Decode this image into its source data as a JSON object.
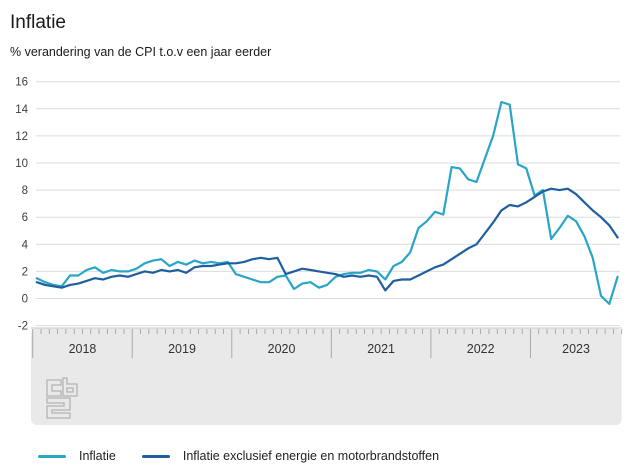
{
  "page": {
    "title": "Inflatie",
    "subtitle": "% verandering van de CPI t.o.v een jaar eerder"
  },
  "chart_data": {
    "type": "line",
    "title": "Inflatie",
    "subtitle": "% verandering van de CPI t.o.v een jaar eerder",
    "x_start": "2018-01",
    "x_end": "2023-11",
    "frequency": "monthly",
    "year_labels": [
      "2018",
      "2019",
      "2020",
      "2021",
      "2022",
      "2023"
    ],
    "y_ticks": [
      -2,
      0,
      2,
      4,
      6,
      8,
      10,
      12,
      14,
      16
    ],
    "ylim": [
      -2,
      16
    ],
    "grid": "horizontal",
    "legend_position": "bottom",
    "colors": {
      "grid": "#dcdcdc",
      "axis_band": "#e9e9e9",
      "axis_band_edge": "#c9c9c9",
      "tick": "#9a9a9a",
      "year_divider": "#a8a8a8",
      "tick_label": "#333333",
      "y_label": "#404040",
      "logo": "#b3b3b3"
    },
    "series": [
      {
        "name": "Inflatie",
        "color": "#29a5c8",
        "values": [
          1.5,
          1.2,
          1.0,
          0.9,
          1.7,
          1.7,
          2.1,
          2.3,
          1.9,
          2.1,
          2.0,
          2.0,
          2.2,
          2.6,
          2.8,
          2.9,
          2.4,
          2.7,
          2.5,
          2.8,
          2.6,
          2.7,
          2.6,
          2.7,
          1.8,
          1.6,
          1.4,
          1.2,
          1.2,
          1.6,
          1.7,
          0.7,
          1.1,
          1.2,
          0.8,
          1.0,
          1.6,
          1.8,
          1.9,
          1.9,
          2.1,
          2.0,
          1.4,
          2.4,
          2.7,
          3.4,
          5.2,
          5.7,
          6.4,
          6.2,
          9.7,
          9.6,
          8.8,
          8.6,
          10.3,
          12.0,
          14.5,
          14.3,
          9.9,
          9.6,
          7.6,
          8.0,
          4.4,
          5.2,
          6.1,
          5.7,
          4.6,
          3.0,
          0.2,
          -0.4,
          1.6
        ]
      },
      {
        "name": "Inflatie exclusief energie en motorbrandstoffen",
        "color": "#1f5fa0",
        "values": [
          1.2,
          1.0,
          0.9,
          0.8,
          1.0,
          1.1,
          1.3,
          1.5,
          1.4,
          1.6,
          1.7,
          1.6,
          1.8,
          2.0,
          1.9,
          2.1,
          2.0,
          2.1,
          1.9,
          2.3,
          2.4,
          2.4,
          2.5,
          2.6,
          2.6,
          2.7,
          2.9,
          3.0,
          2.9,
          3.0,
          1.8,
          2.0,
          2.2,
          2.1,
          2.0,
          1.9,
          1.8,
          1.6,
          1.7,
          1.6,
          1.7,
          1.6,
          0.6,
          1.3,
          1.4,
          1.4,
          1.7,
          2.0,
          2.3,
          2.5,
          2.9,
          3.3,
          3.7,
          4.0,
          4.8,
          5.6,
          6.5,
          6.9,
          6.8,
          7.1,
          7.5,
          7.9,
          8.1,
          8.0,
          8.1,
          7.7,
          7.1,
          6.5,
          6.0,
          5.4,
          4.5
        ]
      }
    ]
  },
  "legend": {
    "items": [
      "Inflatie",
      "Inflatie exclusief energie en motorbrandstoffen"
    ]
  },
  "footer": {
    "logo": "cbs-logo"
  }
}
